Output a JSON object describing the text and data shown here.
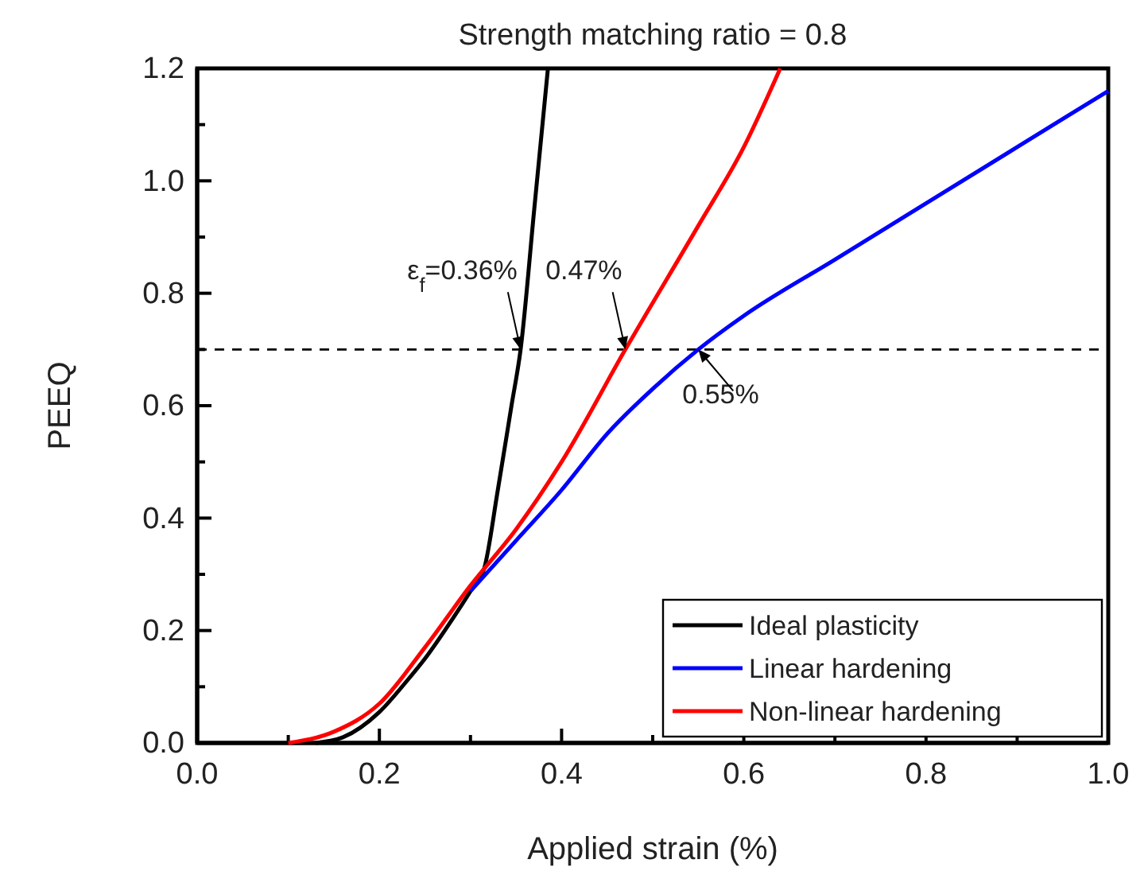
{
  "chart_data": {
    "type": "line",
    "title": "Strength matching ratio = 0.8",
    "xlabel": "Applied strain (%)",
    "ylabel": "PEEQ",
    "xlim": [
      0,
      1.0
    ],
    "ylim": [
      0,
      1.2
    ],
    "xticks": [
      {
        "value": 0,
        "label": "0.0"
      },
      {
        "value": 0.1,
        "label": null
      },
      0.2,
      {
        "value": 0.3,
        "label": null
      },
      0.4,
      {
        "value": 0.5,
        "label": null
      },
      0.6,
      {
        "value": 0.7,
        "label": null
      },
      0.8,
      {
        "value": 0.9,
        "label": null
      },
      {
        "value": 1.0,
        "label": "1.0"
      }
    ],
    "yticks": [
      {
        "value": 0,
        "label": "0.0"
      },
      {
        "value": 0.1,
        "label": null
      },
      0.2,
      {
        "value": 0.3,
        "label": null
      },
      0.4,
      {
        "value": 0.5,
        "label": null
      },
      0.6,
      {
        "value": 0.7,
        "label": null
      },
      0.8,
      {
        "value": 0.9,
        "label": null
      },
      {
        "value": 1.0,
        "label": "1.0"
      },
      {
        "value": 1.1,
        "label": null
      },
      1.2
    ],
    "series": [
      {
        "name": "Ideal plasticity",
        "color": "#000000",
        "x": [
          0.13,
          0.16,
          0.2,
          0.23,
          0.25,
          0.28,
          0.3,
          0.315,
          0.33,
          0.345,
          0.355,
          0.37,
          0.385
        ],
        "values": [
          0,
          0.01,
          0.055,
          0.11,
          0.15,
          0.22,
          0.27,
          0.31,
          0.45,
          0.6,
          0.7,
          0.95,
          1.2
        ]
      },
      {
        "name": "Linear hardening",
        "color": "#0000ff",
        "x": [
          0.3,
          0.35,
          0.4,
          0.45,
          0.5,
          0.55,
          0.6,
          0.7,
          0.8,
          0.9,
          1.0
        ],
        "values": [
          0.27,
          0.36,
          0.45,
          0.55,
          0.63,
          0.7,
          0.76,
          0.86,
          0.96,
          1.06,
          1.16
        ]
      },
      {
        "name": "Non-linear hardening",
        "color": "#ff0000",
        "x": [
          0.1,
          0.15,
          0.2,
          0.25,
          0.3,
          0.35,
          0.4,
          0.47,
          0.55,
          0.6,
          0.64
        ],
        "values": [
          0,
          0.02,
          0.07,
          0.17,
          0.28,
          0.38,
          0.5,
          0.7,
          0.92,
          1.06,
          1.2
        ]
      }
    ],
    "ref_lines": [
      {
        "axis": "y",
        "value": 0.7,
        "line_style": "dashed",
        "color": "#000000"
      }
    ],
    "annotations": [
      {
        "text": "ε$_{f}$=0.36%",
        "x": 0.355,
        "y": 0.7
      },
      {
        "text": "0.47%",
        "x": 0.47,
        "y": 0.7
      },
      {
        "text": "0.55%",
        "x": 0.55,
        "y": 0.7
      }
    ],
    "legend": "bottom right",
    "line_style": "solid",
    "marker": "none",
    "grid": false
  }
}
